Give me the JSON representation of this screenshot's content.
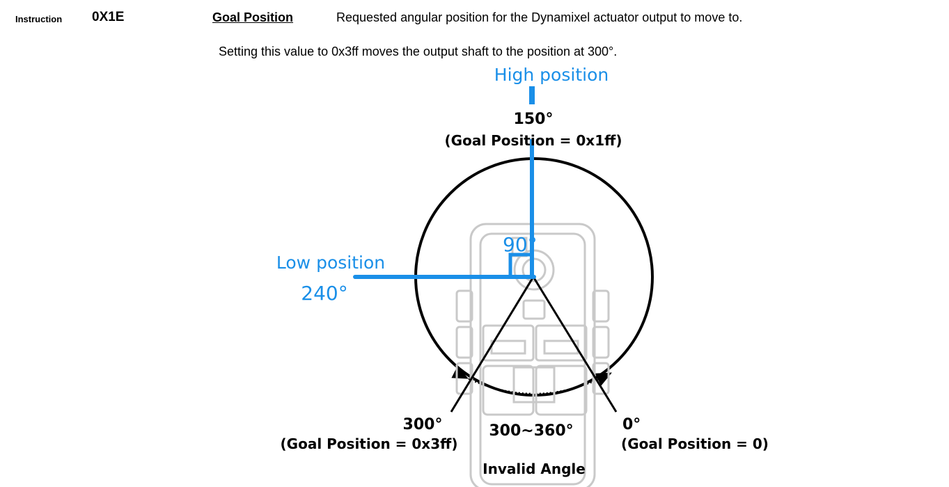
{
  "header": {
    "instruction_label": "Instruction",
    "address": "0X1E",
    "field_name": "Goal Position",
    "field_description": "Requested angular position for the Dynamixel actuator output to move to.",
    "field_note": "Setting this value to 0x3ff moves the output shaft to the position at 300°."
  },
  "diagram": {
    "high_label": "High position",
    "low_label": "Low position",
    "low_angle": "240°",
    "right_angle": "90°",
    "top_angle": "150°",
    "top_goal": "(Goal Position = 0x1ff)",
    "left_angle": "300°",
    "left_goal": "(Goal Position = 0x3ff)",
    "right_angle_label": "0°",
    "right_goal": "(Goal Position = 0)",
    "invalid_range": "300~360°",
    "invalid_label": "Invalid Angle",
    "accent_color": "#1a8fe8"
  }
}
